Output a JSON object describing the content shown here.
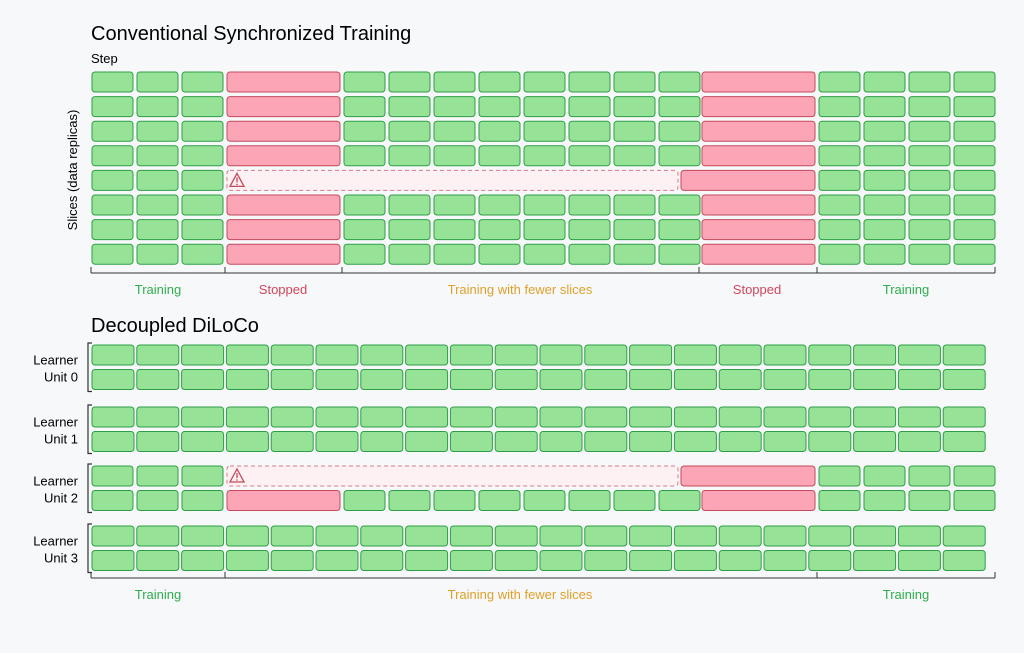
{
  "colors": {
    "training": "#96e296",
    "training_stroke": "#2e9e46",
    "stopped": "#fba5b6",
    "stopped_stroke": "#c44a5c",
    "failed_fill": "#fdf1f3",
    "failed_stroke": "#d97a86",
    "label_training": "#2fae4e",
    "label_stopped": "#d4455a",
    "label_fewer": "#e0a12a",
    "axis": "#333333"
  },
  "sync": {
    "title": "Conventional Synchronized Training",
    "step_label": "Step",
    "y_label": "Slices (data replicas)",
    "phases": [
      {
        "label": "Training",
        "type": "training"
      },
      {
        "label": "Stopped",
        "type": "stopped"
      },
      {
        "label": "Training with fewer slices",
        "type": "fewer"
      },
      {
        "label": "Stopped",
        "type": "stopped"
      },
      {
        "label": "Training",
        "type": "training"
      }
    ],
    "failure_row": 5,
    "warning_icon": "warning-triangle-icon"
  },
  "diloco": {
    "title": "Decoupled DiLoCo",
    "units": [
      {
        "line1": "Learner",
        "line2": "Unit 0"
      },
      {
        "line1": "Learner",
        "line2": "Unit 1"
      },
      {
        "line1": "Learner",
        "line2": "Unit 2"
      },
      {
        "line1": "Learner",
        "line2": "Unit 3"
      }
    ],
    "phases": [
      {
        "label": "Training",
        "type": "training"
      },
      {
        "label": "Training with fewer slices",
        "type": "fewer"
      },
      {
        "label": "Training",
        "type": "training"
      }
    ],
    "failure_unit": 2,
    "warning_icon": "warning-triangle-icon"
  }
}
